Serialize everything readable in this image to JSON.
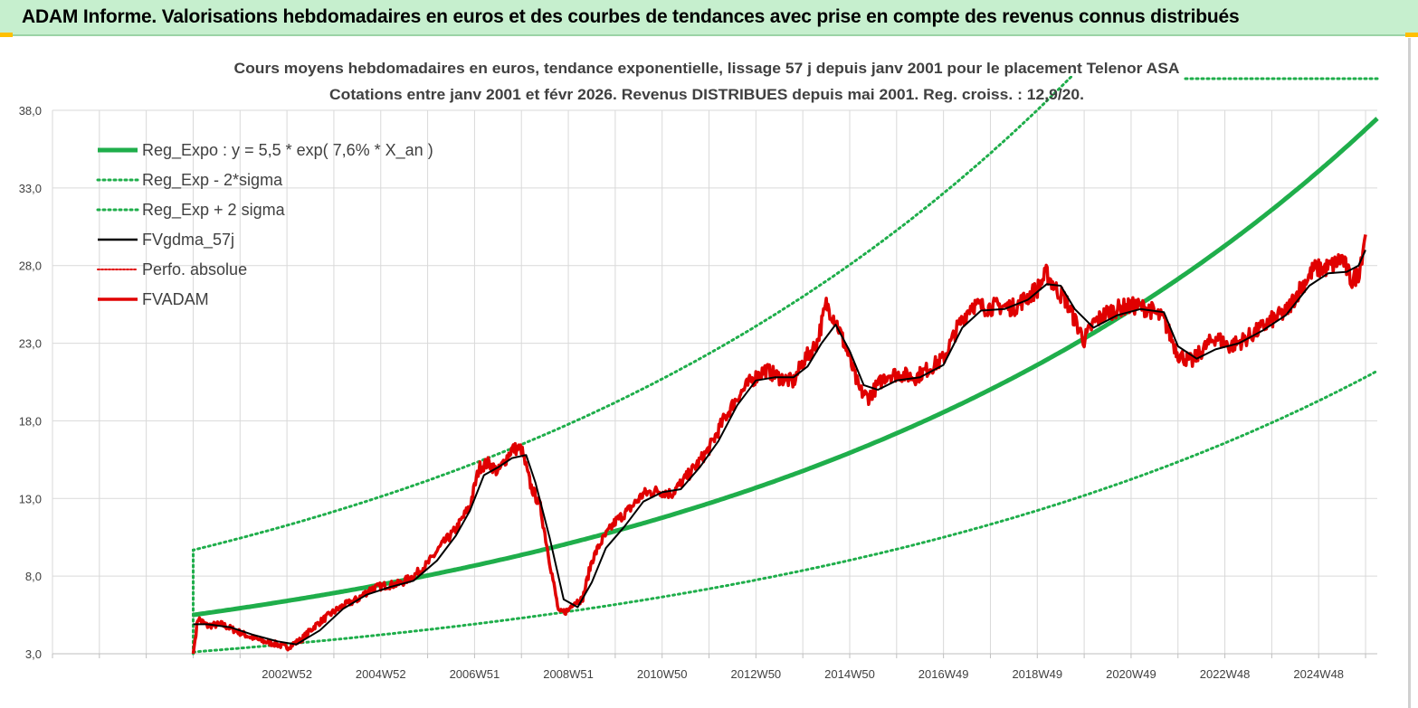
{
  "header": {
    "title": "ADAM Informe. Valorisations hebdomadaires en euros et des courbes de tendances avec prise en compte des revenus connus distribués"
  },
  "chart_data": {
    "type": "line",
    "title": "Cours moyens hebdomadaires en euros, tendance exponentielle, lissage 57 j depuis janv 2001 pour le placement Telenor ASA",
    "subtitle": "Cotations entre janv 2001 et févr 2026. Revenus DISTRIBUES depuis mai 2001. Reg. croiss. : 12,9/20.",
    "xlabel": "",
    "ylabel": "",
    "ylim": [
      3.0,
      38.0
    ],
    "yticks": [
      "3,0",
      "8,0",
      "13,0",
      "18,0",
      "23,0",
      "28,0",
      "33,0",
      "38,0"
    ],
    "xticks": [
      "2002W52",
      "2004W52",
      "2006W51",
      "2008W51",
      "2010W50",
      "2012W50",
      "2014W50",
      "2016W49",
      "2018W49",
      "2020W49",
      "2022W48",
      "2024W48"
    ],
    "xtick_years": [
      2003,
      2005,
      2007,
      2009,
      2011,
      2013,
      2015,
      2017,
      2019,
      2021,
      2023,
      2025
    ],
    "xlim_years": [
      1998,
      2026.25
    ],
    "data_start_year": 2001.0,
    "grid": true,
    "legend_position": "left",
    "legend": [
      {
        "key": "reg",
        "label": "Reg_Expo : y = 5,5 * exp( 7,6% *  X_an )",
        "color": "#1fae4b",
        "style": "solid"
      },
      {
        "key": "low",
        "label": "Reg_Exp - 2*sigma",
        "color": "#1fae4b",
        "style": "dotted"
      },
      {
        "key": "up",
        "label": "Reg_Exp + 2 sigma",
        "color": "#1fae4b",
        "style": "dotted"
      },
      {
        "key": "ma",
        "label": "FVgdma_57j",
        "color": "#000000",
        "style": "solid"
      },
      {
        "key": "perf",
        "label": "Perfo. absolue",
        "color": "#e00000",
        "style": "dotted"
      },
      {
        "key": "fv",
        "label": "FVADAM",
        "color": "#e00000",
        "style": "solid"
      }
    ],
    "regression": {
      "a": 5.5,
      "b": 0.076,
      "sigma_low_factor": 0.566,
      "sigma_high_factor": 1.76
    },
    "series": [
      {
        "name": "FVADAM",
        "x": [
          2001.0,
          2001.1,
          2001.3,
          2001.6,
          2001.9,
          2002.2,
          2002.5,
          2002.8,
          2003.0,
          2003.3,
          2003.6,
          2003.9,
          2004.2,
          2004.5,
          2004.8,
          2005.1,
          2005.4,
          2005.7,
          2006.0,
          2006.3,
          2006.6,
          2006.9,
          2007.1,
          2007.3,
          2007.5,
          2007.8,
          2008.0,
          2008.2,
          2008.4,
          2008.6,
          2008.8,
          2009.0,
          2009.1,
          2009.3,
          2009.5,
          2009.7,
          2010.0,
          2010.3,
          2010.6,
          2010.9,
          2011.2,
          2011.5,
          2011.8,
          2012.0,
          2012.3,
          2012.6,
          2012.9,
          2013.2,
          2013.5,
          2013.8,
          2014.0,
          2014.3,
          2014.5,
          2014.7,
          2015.0,
          2015.2,
          2015.4,
          2015.6,
          2015.8,
          2016.1,
          2016.4,
          2016.7,
          2017.0,
          2017.3,
          2017.6,
          2017.9,
          2018.2,
          2018.5,
          2018.8,
          2019.0,
          2019.2,
          2019.4,
          2019.6,
          2019.8,
          2020.0,
          2020.2,
          2020.5,
          2020.8,
          2021.1,
          2021.4,
          2021.7,
          2022.0,
          2022.3,
          2022.5,
          2022.8,
          2023.1,
          2023.4,
          2023.7,
          2024.0,
          2024.3,
          2024.6,
          2024.9,
          2025.1,
          2025.3,
          2025.5,
          2025.7,
          2025.85,
          2026.0
        ],
        "values": [
          3.0,
          5.3,
          4.8,
          4.9,
          4.5,
          4.1,
          3.8,
          3.6,
          3.4,
          3.9,
          4.8,
          5.5,
          6.1,
          6.5,
          7.2,
          7.4,
          7.5,
          8.0,
          8.8,
          10.0,
          11.0,
          12.5,
          15.0,
          15.3,
          14.7,
          16.2,
          16.2,
          13.8,
          12.5,
          9.0,
          5.6,
          5.8,
          6.3,
          6.5,
          9.0,
          10.2,
          11.5,
          12.3,
          13.3,
          13.5,
          13.3,
          14.3,
          15.4,
          16.2,
          18.0,
          19.5,
          20.6,
          21.3,
          20.8,
          20.5,
          21.8,
          23.0,
          25.5,
          24.5,
          22.0,
          20.0,
          19.5,
          20.3,
          21.0,
          21.0,
          20.8,
          21.4,
          22.0,
          24.0,
          25.5,
          25.3,
          25.4,
          25.3,
          26.0,
          26.5,
          27.5,
          26.5,
          25.8,
          24.5,
          23.2,
          24.3,
          25.0,
          25.3,
          25.4,
          25.2,
          24.5,
          22.3,
          21.8,
          22.5,
          23.4,
          22.8,
          23.2,
          23.8,
          24.5,
          25.0,
          26.5,
          27.8,
          27.8,
          28.0,
          28.5,
          27.0,
          27.5,
          30.0
        ]
      },
      {
        "name": "FVgdma_57j",
        "x": [
          2001.0,
          2001.3,
          2001.8,
          2002.3,
          2002.8,
          2003.2,
          2003.7,
          2004.2,
          2004.7,
          2005.2,
          2005.7,
          2006.2,
          2006.6,
          2006.9,
          2007.2,
          2007.5,
          2007.8,
          2008.1,
          2008.3,
          2008.6,
          2008.9,
          2009.2,
          2009.5,
          2009.8,
          2010.2,
          2010.6,
          2011.0,
          2011.4,
          2011.8,
          2012.2,
          2012.6,
          2013.0,
          2013.4,
          2013.8,
          2014.1,
          2014.4,
          2014.7,
          2015.0,
          2015.3,
          2015.6,
          2016.0,
          2016.5,
          2017.0,
          2017.4,
          2017.8,
          2018.3,
          2018.8,
          2019.2,
          2019.5,
          2019.8,
          2020.2,
          2020.7,
          2021.2,
          2021.7,
          2022.0,
          2022.4,
          2022.8,
          2023.3,
          2023.8,
          2024.3,
          2024.8,
          2025.2,
          2025.6,
          2025.85,
          2026.0
        ],
        "values": [
          4.9,
          4.9,
          4.7,
          4.2,
          3.8,
          3.6,
          4.5,
          5.9,
          6.8,
          7.3,
          7.7,
          9.0,
          10.6,
          12.2,
          14.5,
          15.0,
          15.6,
          15.8,
          14.0,
          10.5,
          6.5,
          6.0,
          7.6,
          9.8,
          11.2,
          12.8,
          13.4,
          13.6,
          15.0,
          16.7,
          19.0,
          20.6,
          20.8,
          20.8,
          21.5,
          23.0,
          24.2,
          22.5,
          20.3,
          20.0,
          20.6,
          20.8,
          21.6,
          24.0,
          25.1,
          25.2,
          25.8,
          26.8,
          26.7,
          25.2,
          24.0,
          24.8,
          25.2,
          25.0,
          22.8,
          22.0,
          22.6,
          23.0,
          23.8,
          24.8,
          26.7,
          27.5,
          27.6,
          28.0,
          29.0
        ]
      }
    ]
  }
}
